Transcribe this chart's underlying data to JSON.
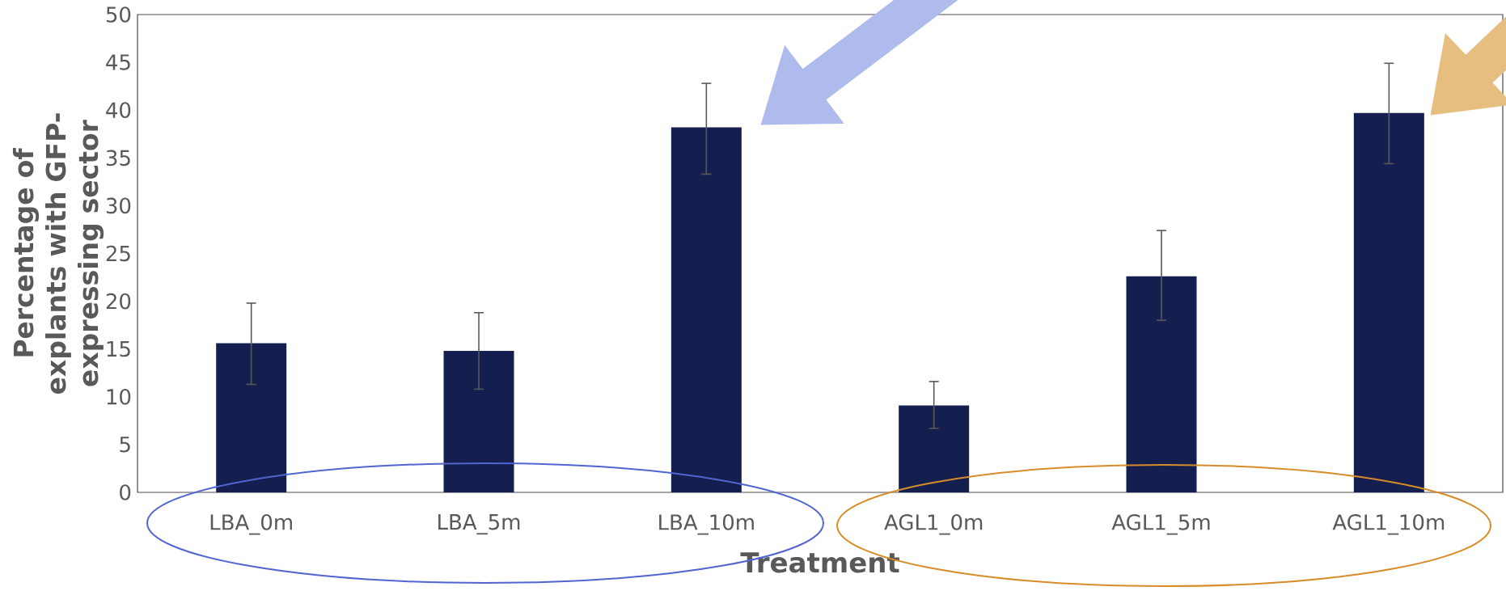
{
  "chart_data": {
    "type": "bar",
    "xlabel": "Treatment",
    "ylabel": "Percentage of explants with GFP-expressing sector",
    "categories": [
      "LBA_0m",
      "LBA_5m",
      "LBA_10m",
      "AGL1_0m",
      "AGL1_5m",
      "AGL1_10m"
    ],
    "values": [
      15.6,
      14.8,
      38.2,
      9.1,
      22.6,
      39.7
    ],
    "errors": [
      [
        11.3,
        19.8
      ],
      [
        10.8,
        18.8
      ],
      [
        33.3,
        42.8
      ],
      [
        6.7,
        11.6
      ],
      [
        18.0,
        27.4
      ],
      [
        34.4,
        44.9
      ]
    ],
    "color": "#141f50",
    "ylim": [
      0,
      50
    ],
    "yticks": [
      0,
      5,
      10,
      15,
      20,
      25,
      30,
      35,
      40,
      45,
      50
    ]
  }
}
